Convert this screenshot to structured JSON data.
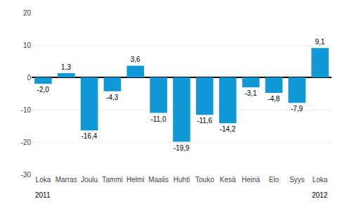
{
  "chart_data": {
    "type": "bar",
    "categories": [
      "Loka",
      "Marras",
      "Joulu",
      "Tammi",
      "Helmi",
      "Maalis",
      "Huhti",
      "Touko",
      "Kesä",
      "Heinä",
      "Elo",
      "Syys",
      "Loka"
    ],
    "values": [
      -2.0,
      1.3,
      -16.4,
      -4.3,
      3.6,
      -11.0,
      -19.9,
      -11.6,
      -14.2,
      -3.1,
      -4.8,
      -7.9,
      9.1
    ],
    "value_labels": [
      "-2,0",
      "1,3",
      "-16,4",
      "-4,3",
      "3,6",
      "-11,0",
      "-19,9",
      "-11,6",
      "-14,2",
      "-3,1",
      "-4,8",
      "-7,9",
      "9,1"
    ],
    "data_labels": true,
    "color": "#1099D6",
    "ylim": [
      -30,
      20
    ],
    "yticks": [
      -30,
      -20,
      -10,
      0,
      10,
      20
    ],
    "grid": true,
    "annotations": [
      {
        "text": "2011",
        "x": 0
      },
      {
        "text": "2012",
        "x": 12
      }
    ]
  }
}
